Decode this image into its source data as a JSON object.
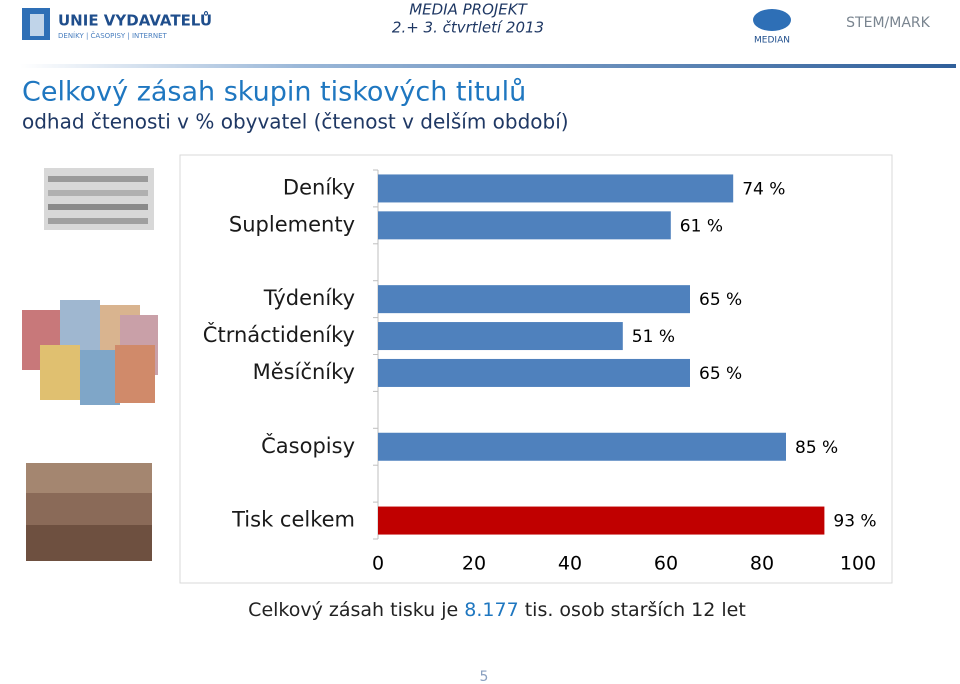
{
  "header": {
    "left_logo": "UNIE VYDAVATELŮ",
    "left_logo_sub": "DENÍKY | ČASOPISY | INTERNET",
    "project": "MEDIA PROJEKT",
    "period": "2.+ 3. čtvrtletí 2013",
    "median_logo": "MEDIAN",
    "stem_logo": "STEM/MARK"
  },
  "chart_data": {
    "type": "bar",
    "orientation": "horizontal",
    "title": "Celkový zásah skupin tiskových titulů",
    "subtitle": "odhad čtenosti v % obyvatel (čtenost v delším období)",
    "categories": [
      "Deníky",
      "Suplementy",
      null,
      "Týdeníky",
      "Čtrnáctideníky",
      "Měsíčníky",
      null,
      "Časopisy",
      null,
      "Tisk celkem"
    ],
    "values": [
      74,
      61,
      null,
      65,
      51,
      65,
      null,
      85,
      null,
      93
    ],
    "value_labels": [
      "74 %",
      "61 %",
      null,
      "65 %",
      "51 %",
      "65 %",
      null,
      "85 %",
      null,
      "93 %"
    ],
    "colors": [
      "#4f81bd",
      "#4f81bd",
      null,
      "#4f81bd",
      "#4f81bd",
      "#4f81bd",
      null,
      "#4f81bd",
      null,
      "#c00000"
    ],
    "xlim": [
      0,
      100
    ],
    "xticks": [
      0,
      20,
      40,
      60,
      80,
      100
    ]
  },
  "footer": {
    "note_parts": [
      "Celkový zásah tisku je ",
      "8.177",
      " tis. osob starších 12 let"
    ],
    "page_number": "5"
  }
}
